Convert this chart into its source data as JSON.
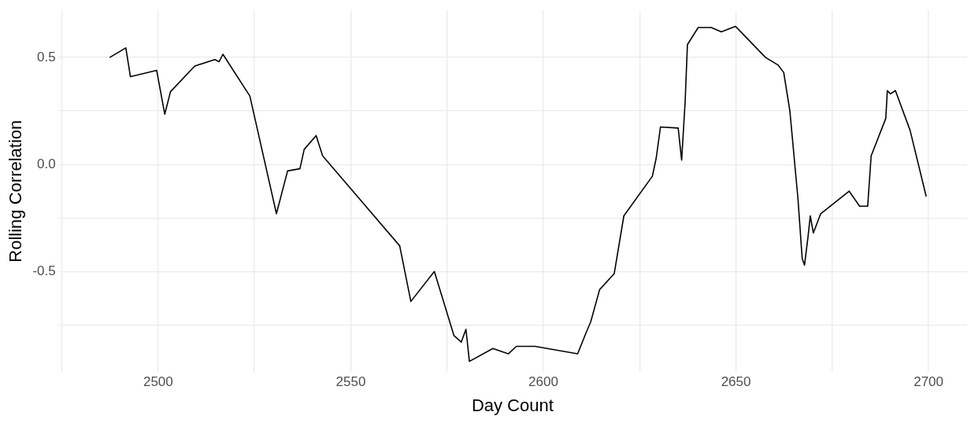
{
  "chart_data": {
    "type": "line",
    "xlabel": "Day Count",
    "ylabel": "Rolling Correlation",
    "xlim": [
      2474,
      2710
    ],
    "ylim": [
      -0.97,
      0.72
    ],
    "xticks": [
      {
        "value": 2475,
        "label": null
      },
      2500,
      {
        "value": 2525,
        "label": null
      },
      2550,
      {
        "value": 2575,
        "label": null
      },
      2600,
      {
        "value": 2625,
        "label": null
      },
      2650,
      {
        "value": 2675,
        "label": null
      },
      2700
    ],
    "yticks": [
      {
        "value": -0.75,
        "label": null
      },
      {
        "value": -0.5,
        "label": "-0.5"
      },
      {
        "value": -0.25,
        "label": null
      },
      {
        "value": 0,
        "label": "0.0"
      },
      {
        "value": 0.25,
        "label": null
      },
      {
        "value": 0.5,
        "label": "0.5"
      }
    ],
    "grid": true,
    "marker": "none",
    "line_style": "solid",
    "series": [
      {
        "color": "#000000",
        "x": [
          2487.4,
          2491.6,
          2492.8,
          2499.6,
          2501.7,
          2503.2,
          2509.5,
          2514.7,
          2515.8,
          2516.8,
          2523.8,
          2530.7,
          2533.6,
          2536.8,
          2537.9,
          2541.0,
          2542.7,
          2562.7,
          2565.6,
          2571.7,
          2576.8,
          2578.7,
          2579.9,
          2580.8,
          2586.9,
          2590.9,
          2593.0,
          2597.8,
          2608.9,
          2611.0,
          2612.3,
          2614.6,
          2618.4,
          2620.9,
          2628.3,
          2629.3,
          2630.4,
          2635.0,
          2635.9,
          2636.8,
          2637.4,
          2640.2,
          2643.6,
          2646.2,
          2649.9,
          2657.7,
          2660.9,
          2662.4,
          2664.0,
          2666.1,
          2667.2,
          2667.8,
          2668.7,
          2669.3,
          2670.1,
          2672.0,
          2679.4,
          2682.1,
          2684.2,
          2685.1,
          2688.9,
          2689.3,
          2690.1,
          2691.4,
          2695.2,
          2699.4
        ],
        "values": [
          0.5,
          0.545,
          0.41,
          0.44,
          0.235,
          0.34,
          0.46,
          0.49,
          0.48,
          0.515,
          0.32,
          -0.23,
          -0.03,
          -0.02,
          0.07,
          0.135,
          0.04,
          -0.38,
          -0.64,
          -0.5,
          -0.8,
          -0.83,
          -0.77,
          -0.92,
          -0.86,
          -0.885,
          -0.85,
          -0.85,
          -0.885,
          -0.79,
          -0.735,
          -0.585,
          -0.51,
          -0.24,
          -0.055,
          0.03,
          0.175,
          0.17,
          0.02,
          0.29,
          0.56,
          0.64,
          0.64,
          0.62,
          0.645,
          0.5,
          0.465,
          0.43,
          0.25,
          -0.16,
          -0.44,
          -0.47,
          -0.34,
          -0.24,
          -0.32,
          -0.23,
          -0.125,
          -0.195,
          -0.195,
          0.04,
          0.215,
          0.345,
          0.33,
          0.345,
          0.16,
          -0.15
        ]
      }
    ]
  }
}
